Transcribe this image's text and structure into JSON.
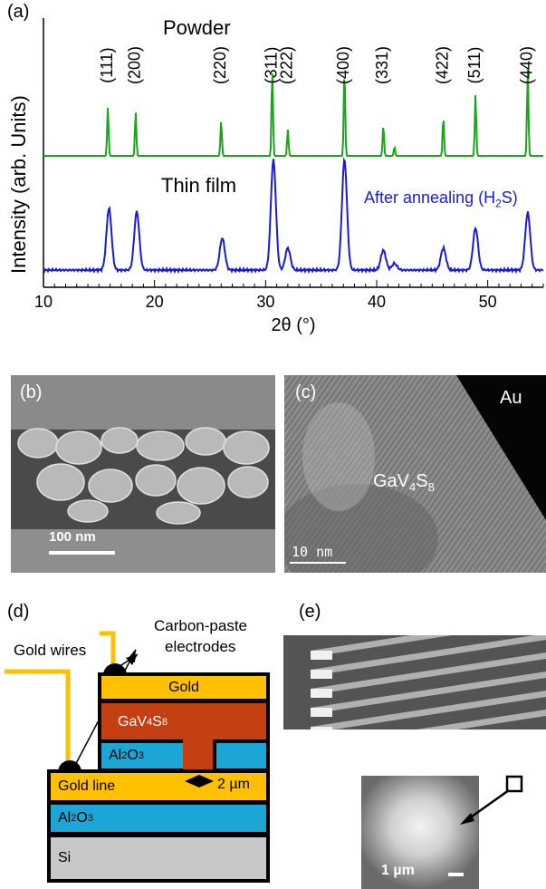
{
  "panel_a": {
    "label": "(a)",
    "powder_label": "Powder",
    "film_label": "Thin film",
    "annealing_label": "After annealing (H",
    "annealing_sub": "2",
    "annealing_tail": "S)",
    "ylabel": "Intensity  (arb. Units)",
    "xlabel": "2θ (°)",
    "xticks": [
      "10",
      "20",
      "30",
      "40",
      "50"
    ],
    "colors": {
      "powder": "#1aa51a",
      "film": "#1a1adb"
    }
  },
  "chart_data": {
    "type": "line",
    "xlabel": "2θ (°)",
    "ylabel": "Intensity  (arb. Units)",
    "xlim": [
      10,
      55
    ],
    "series": [
      {
        "name": "Powder",
        "peaks": [
          {
            "x": 15.8,
            "h": 0.55,
            "hkl": "(111)"
          },
          {
            "x": 18.3,
            "h": 0.5,
            "hkl": "(200)"
          },
          {
            "x": 26.0,
            "h": 0.4,
            "hkl": "(220)"
          },
          {
            "x": 30.6,
            "h": 1.0,
            "hkl": "(311)"
          },
          {
            "x": 32.0,
            "h": 0.3,
            "hkl": "(222)"
          },
          {
            "x": 37.1,
            "h": 1.0,
            "hkl": "(400)"
          },
          {
            "x": 40.6,
            "h": 0.35,
            "hkl": "(331)"
          },
          {
            "x": 41.6,
            "h": 0.1,
            "hkl": ""
          },
          {
            "x": 46.0,
            "h": 0.45,
            "hkl": "(422)"
          },
          {
            "x": 48.9,
            "h": 0.7,
            "hkl": "(511)"
          },
          {
            "x": 53.6,
            "h": 1.0,
            "hkl": "(440)"
          }
        ]
      },
      {
        "name": "Thin film",
        "peaks": [
          {
            "x": 15.9,
            "h": 0.56
          },
          {
            "x": 18.4,
            "h": 0.53
          },
          {
            "x": 26.1,
            "h": 0.29
          },
          {
            "x": 30.7,
            "h": 1.0
          },
          {
            "x": 32.0,
            "h": 0.2
          },
          {
            "x": 37.1,
            "h": 1.0
          },
          {
            "x": 40.6,
            "h": 0.18
          },
          {
            "x": 41.6,
            "h": 0.06
          },
          {
            "x": 46.0,
            "h": 0.2
          },
          {
            "x": 48.9,
            "h": 0.38
          },
          {
            "x": 53.6,
            "h": 0.52
          }
        ]
      }
    ]
  },
  "panel_b": {
    "label": "(b)",
    "scale": "100 nm"
  },
  "panel_c": {
    "label": "(c)",
    "material": "GaV",
    "sub1": "4",
    "mid": "S",
    "sub2": "8",
    "scale": "10 nm",
    "corner": "Au"
  },
  "panel_d": {
    "label": "(d)",
    "carbon_label_1": "Carbon-paste",
    "carbon_label_2": "electrodes",
    "gold_wires": "Gold wires",
    "gold": "Gold",
    "gav_main": "GaV",
    "gav_sub1": "4",
    "gav_mid": "S",
    "gav_sub2": "8",
    "al2o3_top": "Al",
    "al2o3_sub1": "2",
    "al2o3_mid": "O",
    "al2o3_sub2": "3",
    "gold_line": "Gold line",
    "gap": "2 µm",
    "al2o3_bottom": "Al",
    "si": "Si",
    "colors": {
      "gold": "#ffc000",
      "gav": "#c43f12",
      "al2o3": "#1ba6d6",
      "si": "#c8c8c8"
    }
  },
  "panel_e": {
    "label": "(e)",
    "scale": "1 µm"
  }
}
